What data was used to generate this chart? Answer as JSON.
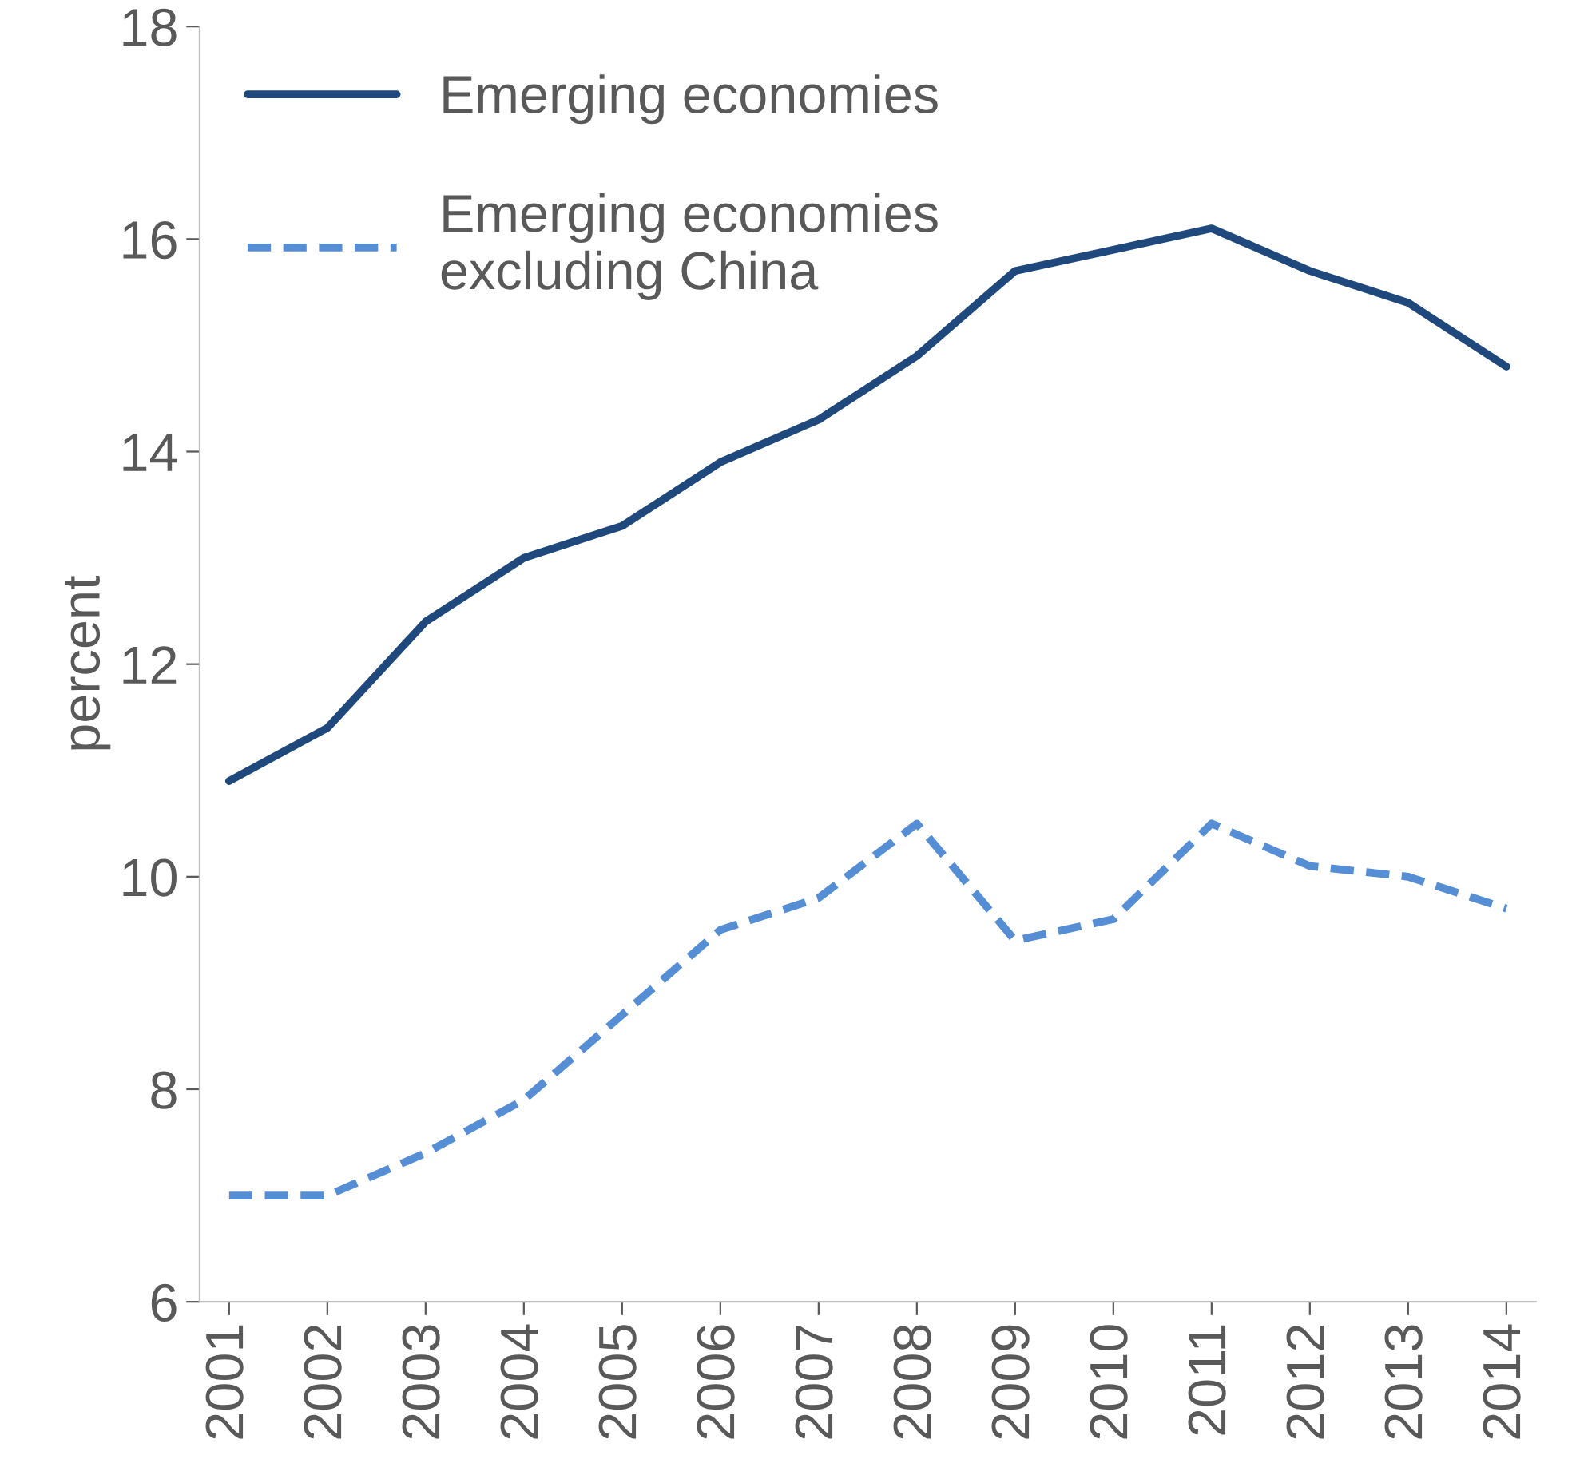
{
  "chart_data": {
    "type": "line",
    "ylabel": "percent",
    "categories": [
      "2001",
      "2002",
      "2003",
      "2004",
      "2005",
      "2006",
      "2007",
      "2008",
      "2009",
      "2010",
      "2011",
      "2012",
      "2013",
      "2014"
    ],
    "series": [
      {
        "name": "Emerging economies",
        "color": "#1f497d",
        "line_style": "solid",
        "values": [
          10.9,
          11.4,
          12.4,
          13.0,
          13.3,
          13.9,
          14.3,
          14.9,
          15.7,
          15.9,
          16.1,
          15.7,
          15.4,
          14.8
        ]
      },
      {
        "name": "Emerging economies\nexcluding China",
        "color": "#558ed5",
        "line_style": "dashed",
        "values": [
          7.0,
          7.0,
          7.4,
          7.9,
          8.7,
          9.5,
          9.8,
          10.5,
          9.4,
          9.6,
          10.5,
          10.1,
          10.0,
          9.7
        ]
      }
    ],
    "ylim": [
      6,
      18
    ],
    "yticks": [
      6,
      8,
      10,
      12,
      14,
      16,
      18
    ],
    "grid": false,
    "legend": "top left",
    "marker": "none"
  }
}
